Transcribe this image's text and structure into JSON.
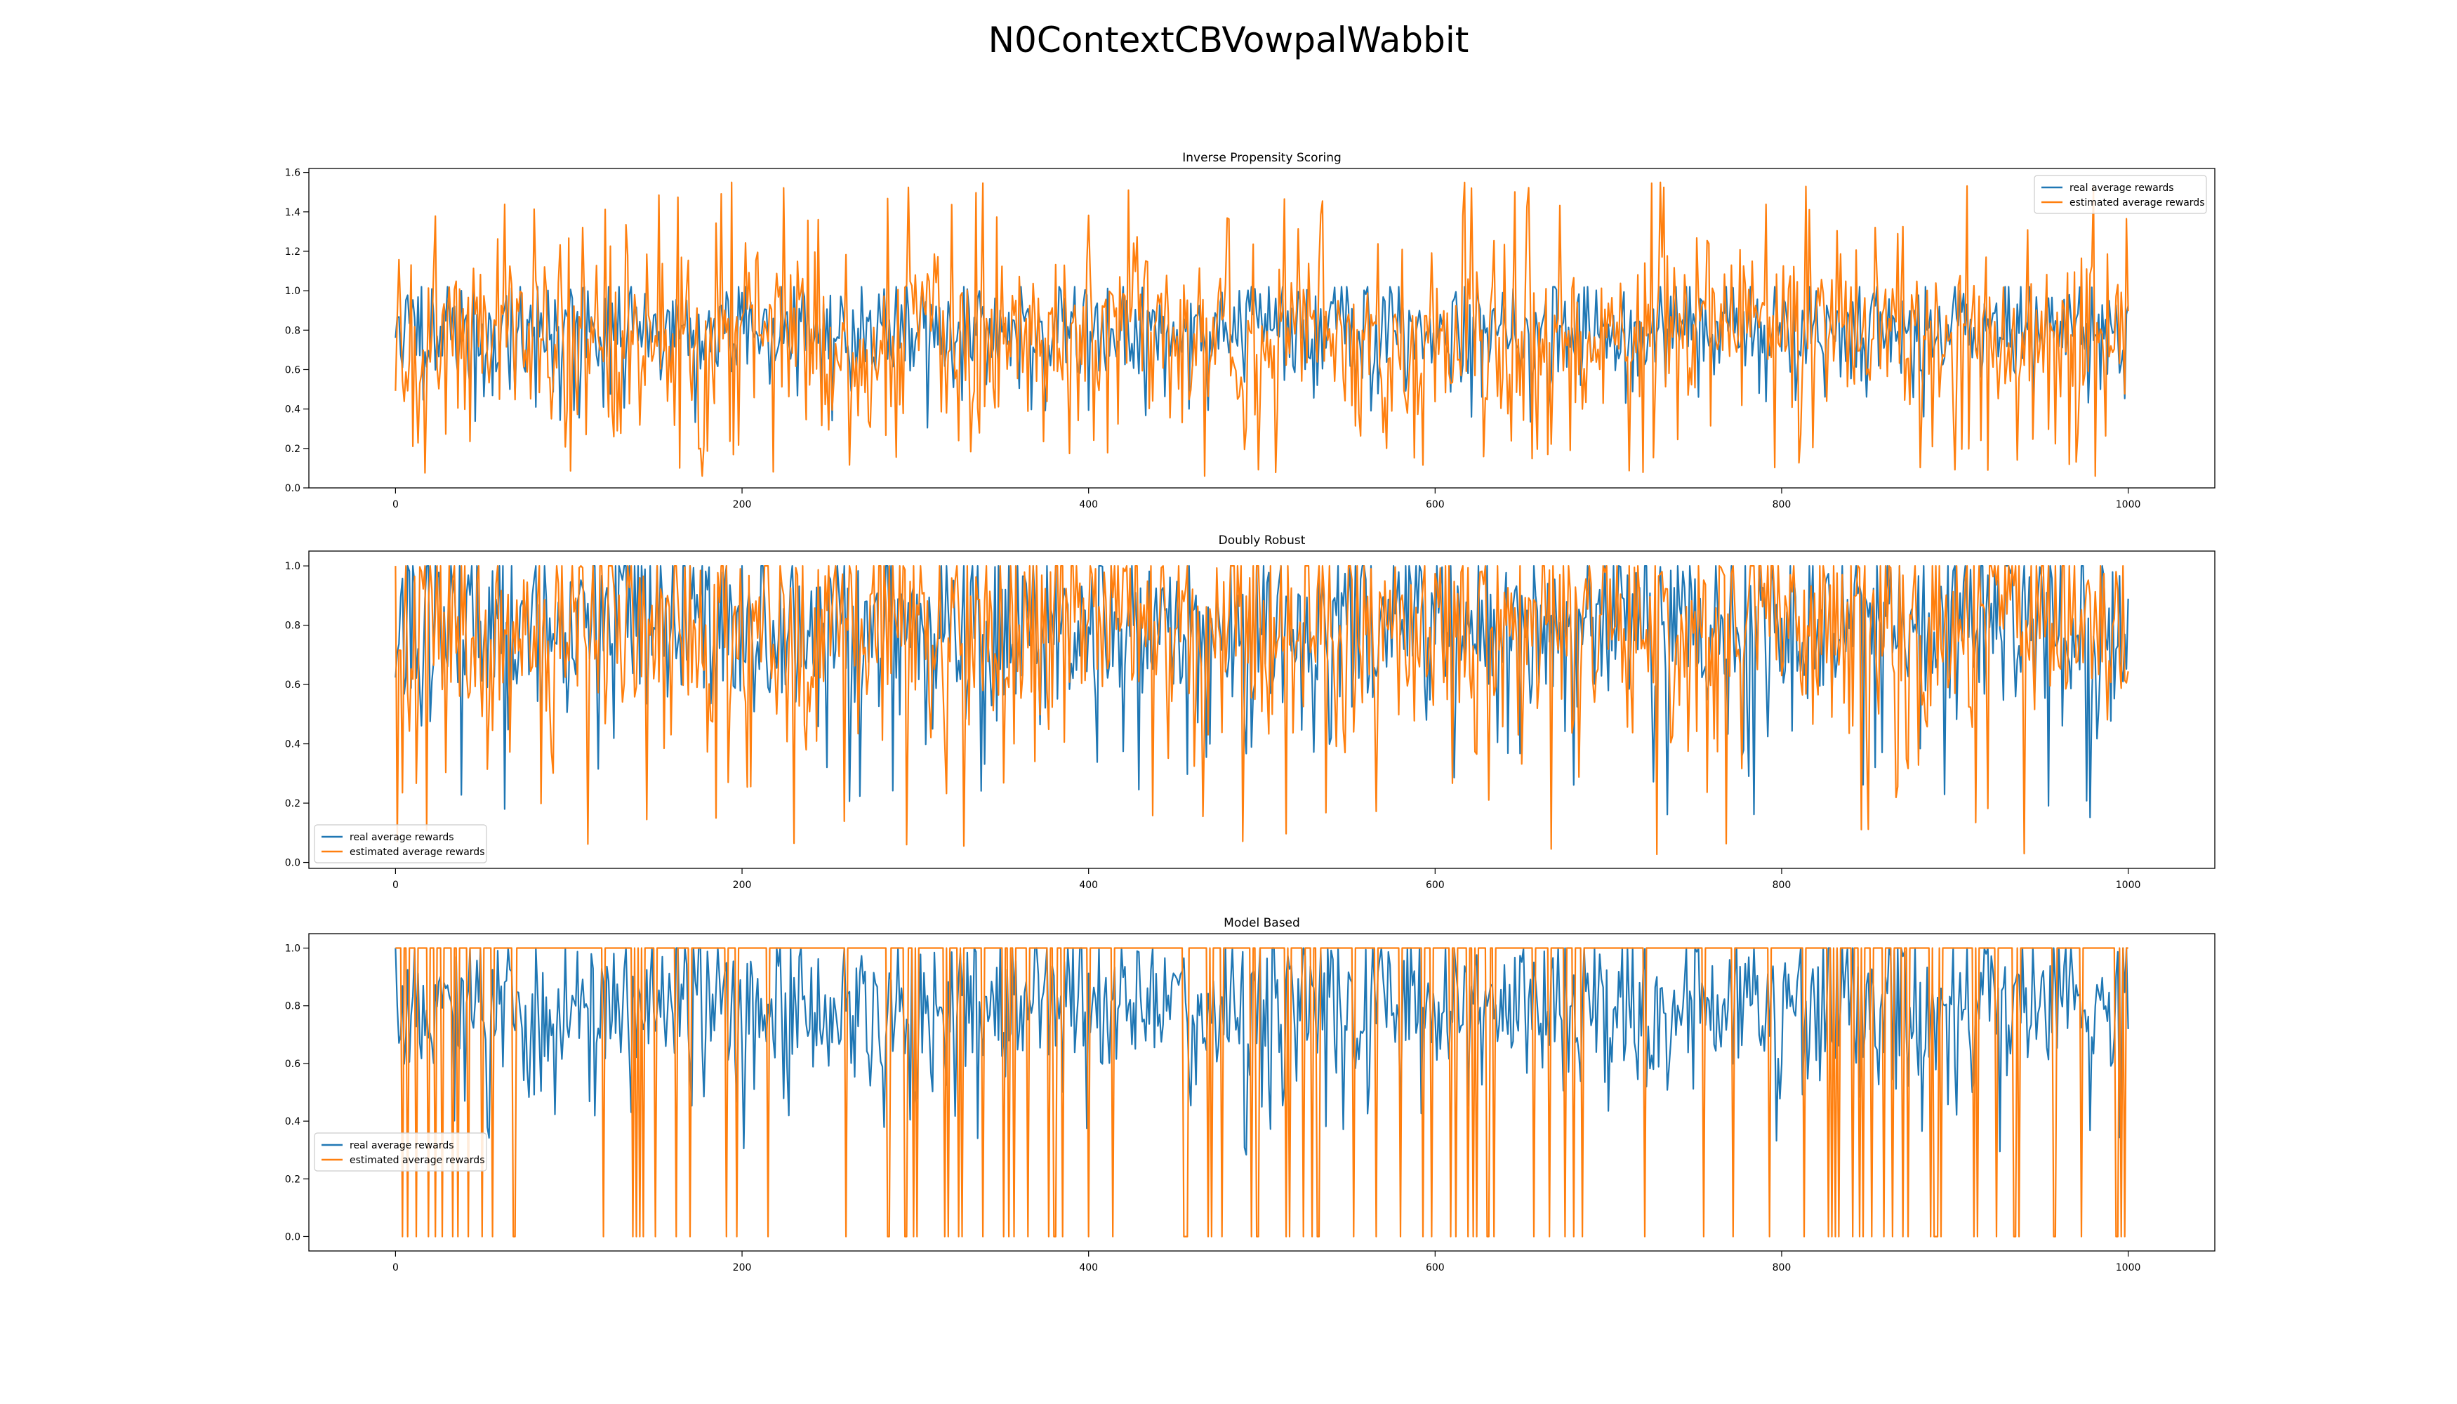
{
  "figure": {
    "title": "N0ContextCBVowpalWabbit"
  },
  "colors": {
    "real": "#1f77b4",
    "estimated": "#ff7f0e"
  },
  "chart_data": [
    {
      "type": "line",
      "title": "Inverse Propensity Scoring",
      "xlim": [
        -50,
        1050
      ],
      "ylim": [
        0.0,
        1.62
      ],
      "xticks": [
        0,
        200,
        400,
        600,
        800,
        1000
      ],
      "yticks": [
        0.0,
        0.2,
        0.4,
        0.6,
        0.8,
        1.0,
        1.2,
        1.4,
        1.6
      ],
      "yticklabels": [
        "0.0",
        "0.2",
        "0.4",
        "0.6",
        "0.8",
        "1.0",
        "1.2",
        "1.4",
        "1.6"
      ],
      "legend": "top-right",
      "x": {
        "start": 0,
        "end": 1000,
        "step": 1
      },
      "series": [
        {
          "name": "real average rewards",
          "color": "#1f77b4",
          "approx": {
            "seed": 11,
            "mean": 0.8,
            "spread": 0.14,
            "min": 0.3,
            "max": 1.02
          }
        },
        {
          "name": "estimated average rewards",
          "color": "#ff7f0e",
          "approx": {
            "seed": 23,
            "mean": 0.78,
            "spread": 0.26,
            "min": 0.06,
            "max": 1.55
          }
        }
      ]
    },
    {
      "type": "line",
      "title": "Doubly Robust",
      "xlim": [
        -50,
        1050
      ],
      "ylim": [
        -0.02,
        1.05
      ],
      "xticks": [
        0,
        200,
        400,
        600,
        800,
        1000
      ],
      "yticks": [
        0.0,
        0.2,
        0.4,
        0.6,
        0.8,
        1.0
      ],
      "yticklabels": [
        "0.0",
        "0.2",
        "0.4",
        "0.6",
        "0.8",
        "1.0"
      ],
      "legend": "bottom-left",
      "x": {
        "start": 0,
        "end": 1000,
        "step": 1
      },
      "series": [
        {
          "name": "real average rewards",
          "color": "#1f77b4",
          "approx": {
            "seed": 37,
            "mean": 0.8,
            "spread": 0.16,
            "min": 0.15,
            "max": 1.0
          }
        },
        {
          "name": "estimated average rewards",
          "color": "#ff7f0e",
          "approx": {
            "seed": 41,
            "mean": 0.78,
            "spread": 0.22,
            "min": 0.02,
            "max": 1.0
          }
        }
      ]
    },
    {
      "type": "line",
      "title": "Model Based",
      "xlim": [
        -50,
        1050
      ],
      "ylim": [
        -0.05,
        1.05
      ],
      "xticks": [
        0,
        200,
        400,
        600,
        800,
        1000
      ],
      "yticks": [
        0.0,
        0.2,
        0.4,
        0.6,
        0.8,
        1.0
      ],
      "yticklabels": [
        "0.0",
        "0.2",
        "0.4",
        "0.6",
        "0.8",
        "1.0"
      ],
      "legend": "center-left",
      "x": {
        "start": 0,
        "end": 1000,
        "step": 1
      },
      "series": [
        {
          "name": "real average rewards",
          "color": "#1f77b4",
          "approx": {
            "seed": 53,
            "mean": 0.8,
            "spread": 0.15,
            "min": 0.28,
            "max": 1.0
          }
        },
        {
          "name": "estimated average rewards",
          "color": "#ff7f0e",
          "pattern": "mostly 1.0 with frequent drops to 0.0",
          "approx": {
            "seed": 67,
            "high": 1.0,
            "low": 0.0,
            "drop_rate": 0.09
          }
        }
      ]
    }
  ]
}
